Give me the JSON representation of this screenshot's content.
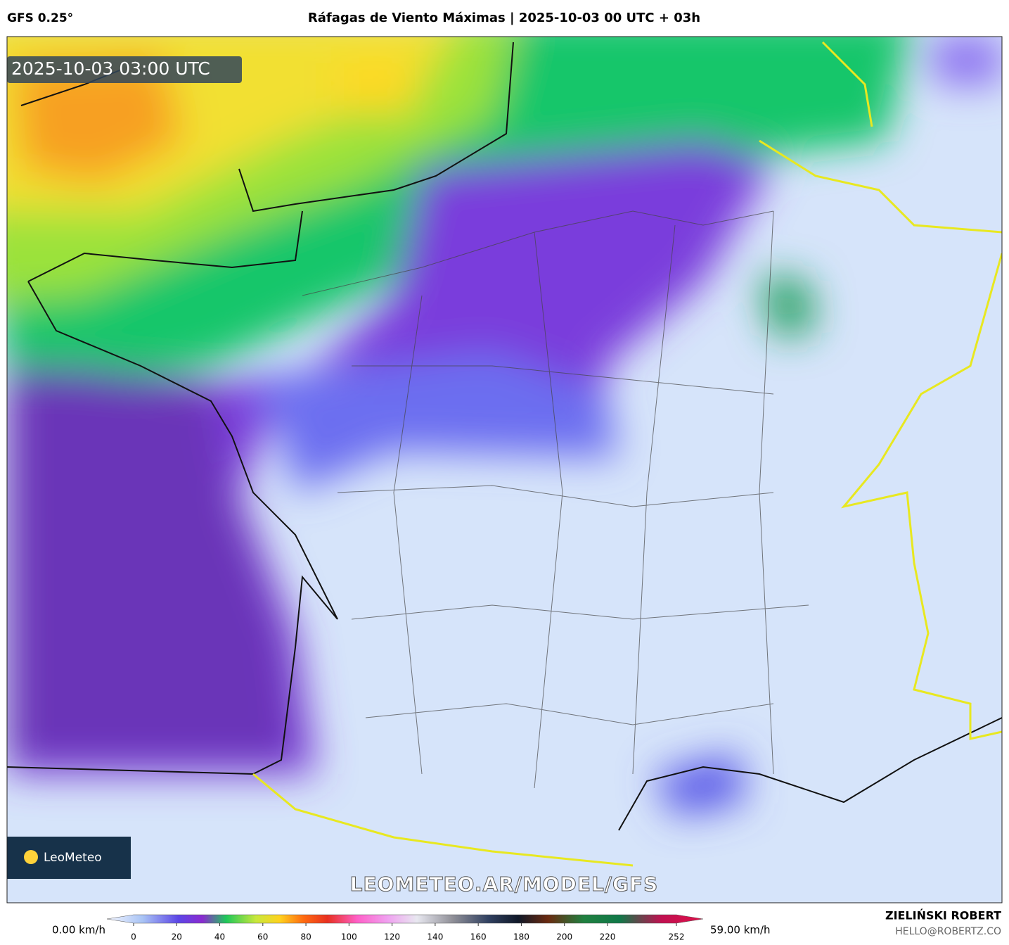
{
  "header": {
    "model": "GFS 0.25°",
    "title": "Ráfagas de Viento Máximas | 2025-10-03 00 UTC + 03h"
  },
  "map": {
    "timestamp": "2025-10-03 03:00 UTC",
    "watermark": "LEOMETEO.AR/MODEL/GFS",
    "logo": "LeoMeteo"
  },
  "colorbar": {
    "min_label": "0.00 km/h",
    "max_label": "59.00 km/h",
    "range": [
      0,
      252
    ],
    "ticks": [
      0,
      20,
      40,
      60,
      80,
      100,
      120,
      140,
      160,
      180,
      200,
      220,
      252
    ]
  },
  "footer": {
    "author": "ZIELIŃSKI ROBERT",
    "email": "HELLO@ROBERTZ.CO"
  }
}
